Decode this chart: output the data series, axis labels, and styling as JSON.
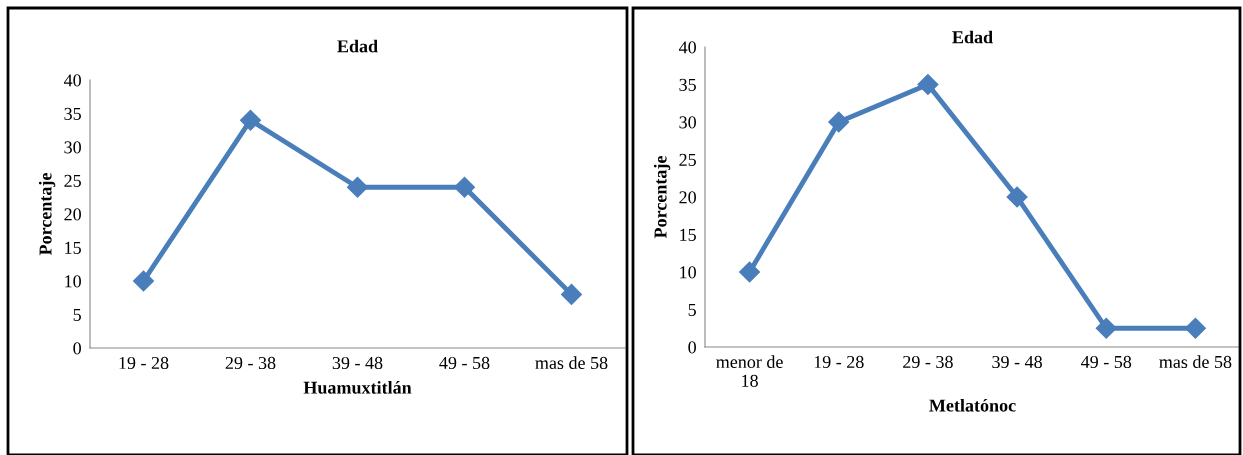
{
  "chart_data": [
    {
      "type": "line",
      "title": "Edad",
      "xlabel": "Huamuxtitlán",
      "ylabel": "Porcentaje",
      "categories": [
        "19 - 28",
        "29 - 38",
        "39 - 48",
        "49 - 58",
        "mas de 58"
      ],
      "series": [
        {
          "color": "#4a7ebb",
          "values": [
            10,
            34,
            24,
            24,
            8
          ]
        }
      ],
      "ylim": [
        0,
        40
      ],
      "yticks": [
        0,
        5,
        10,
        15,
        20,
        25,
        30,
        35,
        40
      ],
      "marker": "diamond",
      "line_style": "solid",
      "grid": false,
      "legend": false
    },
    {
      "type": "line",
      "title": "Edad",
      "xlabel": "Metlatónoc",
      "ylabel": "Porcentaje",
      "categories": [
        "menor de\n18",
        "19 - 28",
        "29 - 38",
        "39 - 48",
        "49 - 58",
        "mas de 58"
      ],
      "series": [
        {
          "color": "#4a7ebb",
          "values": [
            10,
            30,
            35,
            20,
            2.5,
            2.5
          ]
        }
      ],
      "ylim": [
        0,
        40
      ],
      "yticks": [
        0,
        5,
        10,
        15,
        20,
        25,
        30,
        35,
        40
      ],
      "marker": "diamond",
      "line_style": "solid",
      "grid": false,
      "legend": false
    }
  ]
}
